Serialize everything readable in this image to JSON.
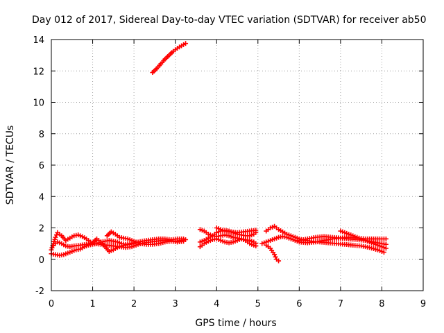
{
  "chart_data": {
    "type": "scatter",
    "title": "Day 012 of 2017, Sidereal Day-to-day VTEC variation (SDTVAR) for receiver ab50",
    "xlabel": "GPS time / hours",
    "ylabel": "SDTVAR / TECUs",
    "xlim": [
      0,
      9
    ],
    "ylim": [
      -2,
      14
    ],
    "xticks": [
      "0",
      "1",
      "2",
      "3",
      "4",
      "5",
      "6",
      "7",
      "8",
      "9"
    ],
    "yticks": [
      "-2",
      "0",
      "2",
      "4",
      "6",
      "8",
      "10",
      "12",
      "14"
    ],
    "grid": true,
    "marker": "plus",
    "color": "#ff0000",
    "series": [
      {
        "name": "upper arc",
        "points": [
          [
            2.45,
            11.9
          ],
          [
            2.55,
            12.15
          ],
          [
            2.65,
            12.45
          ],
          [
            2.75,
            12.75
          ],
          [
            2.85,
            13.0
          ],
          [
            2.95,
            13.25
          ],
          [
            3.05,
            13.45
          ],
          [
            3.15,
            13.6
          ],
          [
            3.25,
            13.75
          ]
        ]
      },
      {
        "name": "arc 1",
        "points": [
          [
            0.0,
            0.6
          ],
          [
            0.05,
            1.0
          ],
          [
            0.1,
            1.4
          ],
          [
            0.15,
            1.7
          ],
          [
            0.25,
            1.5
          ],
          [
            0.35,
            1.2
          ],
          [
            0.45,
            1.35
          ],
          [
            0.55,
            1.5
          ],
          [
            0.65,
            1.55
          ],
          [
            0.75,
            1.45
          ],
          [
            0.85,
            1.3
          ],
          [
            0.95,
            1.1
          ],
          [
            1.05,
            1.0
          ],
          [
            1.2,
            0.95
          ],
          [
            1.35,
            0.9
          ],
          [
            1.5,
            0.85
          ],
          [
            1.65,
            0.8
          ],
          [
            1.8,
            0.75
          ],
          [
            1.95,
            0.8
          ],
          [
            2.1,
            0.95
          ],
          [
            2.25,
            1.05
          ],
          [
            2.4,
            1.1
          ],
          [
            2.55,
            1.15
          ],
          [
            2.7,
            1.2
          ],
          [
            2.85,
            1.2
          ],
          [
            3.0,
            1.15
          ],
          [
            3.15,
            1.2
          ],
          [
            3.25,
            1.25
          ]
        ]
      },
      {
        "name": "arc 2",
        "points": [
          [
            0.0,
            0.35
          ],
          [
            0.1,
            0.3
          ],
          [
            0.2,
            0.25
          ],
          [
            0.3,
            0.3
          ],
          [
            0.4,
            0.4
          ],
          [
            0.5,
            0.5
          ],
          [
            0.6,
            0.6
          ],
          [
            0.7,
            0.65
          ],
          [
            0.8,
            0.8
          ],
          [
            0.9,
            0.9
          ],
          [
            1.0,
            0.95
          ],
          [
            1.1,
            1.0
          ],
          [
            1.2,
            1.1
          ],
          [
            1.3,
            1.15
          ],
          [
            1.4,
            1.2
          ],
          [
            1.5,
            1.15
          ],
          [
            1.6,
            1.1
          ],
          [
            1.7,
            1.0
          ],
          [
            1.8,
            0.95
          ],
          [
            1.9,
            1.0
          ],
          [
            2.0,
            1.05
          ],
          [
            2.1,
            1.1
          ],
          [
            2.2,
            1.15
          ],
          [
            2.3,
            1.2
          ],
          [
            2.45,
            1.25
          ],
          [
            2.6,
            1.3
          ],
          [
            2.75,
            1.3
          ],
          [
            2.9,
            1.25
          ],
          [
            3.05,
            1.3
          ],
          [
            3.2,
            1.3
          ]
        ]
      },
      {
        "name": "arc 3",
        "points": [
          [
            0.05,
            0.9
          ],
          [
            0.15,
            1.1
          ],
          [
            0.25,
            1.0
          ],
          [
            0.35,
            0.85
          ],
          [
            0.45,
            0.8
          ],
          [
            0.55,
            0.85
          ],
          [
            0.7,
            0.9
          ],
          [
            0.85,
            0.95
          ],
          [
            1.0,
            1.05
          ],
          [
            1.1,
            1.3
          ],
          [
            1.2,
            1.1
          ],
          [
            1.3,
            0.8
          ],
          [
            1.4,
            0.5
          ],
          [
            1.5,
            0.6
          ],
          [
            1.6,
            0.75
          ],
          [
            1.7,
            0.85
          ],
          [
            1.8,
            0.9
          ],
          [
            1.9,
            0.95
          ],
          [
            2.0,
            1.0
          ]
        ]
      },
      {
        "name": "arc 4",
        "points": [
          [
            1.35,
            1.5
          ],
          [
            1.45,
            1.75
          ],
          [
            1.55,
            1.6
          ],
          [
            1.65,
            1.4
          ],
          [
            1.75,
            1.35
          ],
          [
            1.85,
            1.3
          ],
          [
            1.95,
            1.2
          ],
          [
            2.05,
            1.1
          ],
          [
            2.15,
            1.0
          ],
          [
            2.3,
            0.95
          ],
          [
            2.45,
            0.95
          ],
          [
            2.6,
            1.0
          ],
          [
            2.75,
            1.1
          ],
          [
            2.9,
            1.15
          ],
          [
            3.05,
            1.1
          ],
          [
            3.2,
            1.15
          ]
        ]
      },
      {
        "name": "arc 5",
        "points": [
          [
            3.6,
            1.9
          ],
          [
            3.7,
            1.8
          ],
          [
            3.8,
            1.6
          ],
          [
            3.9,
            1.5
          ],
          [
            4.0,
            1.45
          ],
          [
            4.1,
            1.5
          ],
          [
            4.2,
            1.55
          ],
          [
            4.3,
            1.5
          ],
          [
            4.4,
            1.4
          ],
          [
            4.5,
            1.35
          ],
          [
            4.6,
            1.3
          ],
          [
            4.7,
            1.25
          ],
          [
            4.8,
            1.2
          ],
          [
            4.9,
            1.1
          ],
          [
            4.95,
            1.0
          ]
        ]
      },
      {
        "name": "arc 6",
        "points": [
          [
            3.6,
            1.1
          ],
          [
            3.7,
            1.2
          ],
          [
            3.8,
            1.35
          ],
          [
            3.9,
            1.5
          ],
          [
            4.0,
            1.7
          ],
          [
            4.1,
            1.8
          ],
          [
            4.2,
            1.85
          ],
          [
            4.3,
            1.8
          ],
          [
            4.4,
            1.7
          ],
          [
            4.5,
            1.6
          ],
          [
            4.6,
            1.55
          ],
          [
            4.7,
            1.5
          ],
          [
            4.8,
            1.5
          ],
          [
            4.9,
            1.6
          ],
          [
            4.95,
            1.7
          ]
        ]
      },
      {
        "name": "arc 7",
        "points": [
          [
            3.6,
            0.8
          ],
          [
            3.7,
            1.0
          ],
          [
            3.8,
            1.15
          ],
          [
            3.9,
            1.25
          ],
          [
            4.0,
            1.3
          ],
          [
            4.1,
            1.2
          ],
          [
            4.2,
            1.1
          ],
          [
            4.3,
            1.05
          ],
          [
            4.4,
            1.1
          ],
          [
            4.5,
            1.2
          ],
          [
            4.6,
            1.3
          ],
          [
            4.7,
            1.2
          ],
          [
            4.8,
            1.0
          ],
          [
            4.9,
            0.9
          ],
          [
            4.95,
            0.85
          ]
        ]
      },
      {
        "name": "arc 8",
        "points": [
          [
            4.0,
            2.0
          ],
          [
            4.1,
            1.9
          ],
          [
            4.2,
            1.8
          ],
          [
            4.35,
            1.75
          ],
          [
            4.5,
            1.7
          ],
          [
            4.65,
            1.75
          ],
          [
            4.8,
            1.8
          ],
          [
            4.95,
            1.85
          ]
        ]
      },
      {
        "name": "arc 9",
        "points": [
          [
            5.2,
            1.8
          ],
          [
            5.3,
            2.0
          ],
          [
            5.4,
            2.1
          ],
          [
            5.5,
            1.9
          ],
          [
            5.6,
            1.75
          ],
          [
            5.7,
            1.6
          ],
          [
            5.8,
            1.5
          ],
          [
            5.9,
            1.4
          ],
          [
            6.0,
            1.3
          ],
          [
            6.15,
            1.2
          ],
          [
            6.3,
            1.15
          ],
          [
            6.5,
            1.1
          ],
          [
            6.7,
            1.05
          ],
          [
            6.9,
            1.0
          ],
          [
            7.1,
            0.95
          ],
          [
            7.3,
            0.9
          ],
          [
            7.5,
            0.85
          ],
          [
            7.7,
            0.75
          ],
          [
            7.9,
            0.6
          ],
          [
            8.05,
            0.45
          ]
        ]
      },
      {
        "name": "arc 10",
        "points": [
          [
            5.1,
            1.0
          ],
          [
            5.2,
            1.1
          ],
          [
            5.3,
            1.2
          ],
          [
            5.4,
            1.3
          ],
          [
            5.5,
            1.4
          ],
          [
            5.6,
            1.45
          ],
          [
            5.7,
            1.4
          ],
          [
            5.8,
            1.3
          ],
          [
            5.9,
            1.2
          ],
          [
            6.0,
            1.1
          ],
          [
            6.2,
            1.05
          ],
          [
            6.4,
            1.1
          ],
          [
            6.6,
            1.2
          ],
          [
            6.8,
            1.3
          ],
          [
            7.0,
            1.35
          ],
          [
            7.2,
            1.3
          ],
          [
            7.4,
            1.25
          ],
          [
            7.6,
            1.2
          ],
          [
            7.8,
            1.1
          ],
          [
            8.0,
            1.0
          ],
          [
            8.1,
            0.95
          ]
        ]
      },
      {
        "name": "arc 11",
        "points": [
          [
            5.2,
            0.9
          ],
          [
            5.3,
            0.7
          ],
          [
            5.4,
            0.3
          ],
          [
            5.45,
            0.0
          ],
          [
            5.5,
            -0.1
          ]
        ]
      },
      {
        "name": "arc 12",
        "points": [
          [
            6.0,
            1.2
          ],
          [
            6.2,
            1.3
          ],
          [
            6.4,
            1.4
          ],
          [
            6.6,
            1.45
          ],
          [
            6.8,
            1.4
          ],
          [
            7.0,
            1.35
          ],
          [
            7.2,
            1.4
          ],
          [
            7.4,
            1.35
          ],
          [
            7.6,
            1.3
          ],
          [
            7.8,
            1.3
          ],
          [
            8.0,
            1.3
          ],
          [
            8.1,
            1.3
          ]
        ]
      },
      {
        "name": "arc 13",
        "points": [
          [
            7.0,
            1.8
          ],
          [
            7.2,
            1.6
          ],
          [
            7.4,
            1.4
          ],
          [
            7.6,
            1.2
          ],
          [
            7.8,
            1.0
          ],
          [
            8.0,
            0.8
          ],
          [
            8.1,
            0.7
          ]
        ]
      }
    ]
  }
}
